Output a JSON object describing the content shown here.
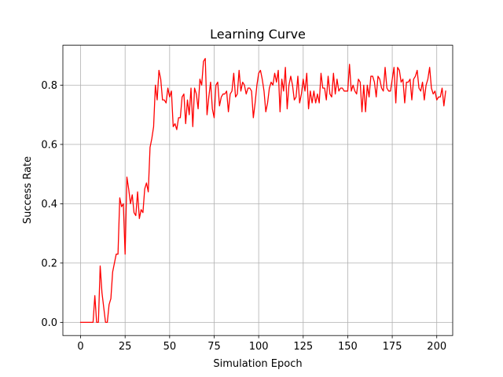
{
  "chart_data": {
    "type": "line",
    "title": "Learning Curve",
    "xlabel": "Simulation Epoch",
    "ylabel": "Success Rate",
    "xlim": [
      -9.95,
      208.95
    ],
    "ylim": [
      -0.0445,
      0.9345
    ],
    "grid": true,
    "x_ticks": [
      0,
      25,
      50,
      75,
      100,
      125,
      150,
      175,
      200
    ],
    "y_ticks": [
      0.0,
      0.2,
      0.4,
      0.6,
      0.8
    ],
    "x_tick_labels": [
      "0",
      "25",
      "50",
      "75",
      "100",
      "125",
      "150",
      "175",
      "200"
    ],
    "y_tick_labels": [
      "0.0",
      "0.2",
      "0.4",
      "0.6",
      "0.8"
    ],
    "series": [
      {
        "color": "#ff0000",
        "x_start": 0,
        "x_step": 1,
        "values": [
          0.0,
          0.0,
          0.0,
          0.0,
          0.0,
          0.0,
          0.0,
          0.0,
          0.09,
          0.0,
          0.0,
          0.19,
          0.1,
          0.05,
          0.0,
          0.0,
          0.06,
          0.08,
          0.17,
          0.2,
          0.23,
          0.23,
          0.42,
          0.39,
          0.4,
          0.23,
          0.49,
          0.45,
          0.4,
          0.43,
          0.37,
          0.36,
          0.44,
          0.35,
          0.38,
          0.37,
          0.45,
          0.47,
          0.44,
          0.59,
          0.62,
          0.66,
          0.8,
          0.75,
          0.85,
          0.82,
          0.75,
          0.75,
          0.74,
          0.79,
          0.76,
          0.78,
          0.66,
          0.67,
          0.65,
          0.69,
          0.69,
          0.76,
          0.77,
          0.67,
          0.75,
          0.7,
          0.79,
          0.66,
          0.79,
          0.77,
          0.72,
          0.82,
          0.8,
          0.88,
          0.89,
          0.7,
          0.76,
          0.81,
          0.72,
          0.69,
          0.8,
          0.81,
          0.73,
          0.76,
          0.77,
          0.77,
          0.78,
          0.71,
          0.77,
          0.78,
          0.84,
          0.76,
          0.77,
          0.85,
          0.78,
          0.81,
          0.8,
          0.77,
          0.79,
          0.79,
          0.78,
          0.69,
          0.74,
          0.8,
          0.84,
          0.85,
          0.82,
          0.78,
          0.71,
          0.74,
          0.79,
          0.81,
          0.8,
          0.84,
          0.81,
          0.85,
          0.71,
          0.82,
          0.78,
          0.86,
          0.72,
          0.8,
          0.83,
          0.8,
          0.75,
          0.76,
          0.83,
          0.74,
          0.77,
          0.82,
          0.78,
          0.84,
          0.72,
          0.78,
          0.74,
          0.78,
          0.74,
          0.77,
          0.74,
          0.84,
          0.79,
          0.79,
          0.75,
          0.83,
          0.77,
          0.76,
          0.84,
          0.77,
          0.82,
          0.78,
          0.79,
          0.79,
          0.78,
          0.78,
          0.78,
          0.87,
          0.78,
          0.8,
          0.78,
          0.77,
          0.82,
          0.81,
          0.71,
          0.8,
          0.71,
          0.8,
          0.76,
          0.83,
          0.83,
          0.81,
          0.76,
          0.83,
          0.82,
          0.79,
          0.78,
          0.86,
          0.79,
          0.78,
          0.78,
          0.82,
          0.86,
          0.74,
          0.86,
          0.85,
          0.81,
          0.82,
          0.74,
          0.81,
          0.81,
          0.82,
          0.75,
          0.82,
          0.83,
          0.85,
          0.79,
          0.78,
          0.81,
          0.75,
          0.8,
          0.82,
          0.86,
          0.79,
          0.77,
          0.78,
          0.75,
          0.76,
          0.76,
          0.79,
          0.73,
          0.78
        ]
      }
    ]
  }
}
